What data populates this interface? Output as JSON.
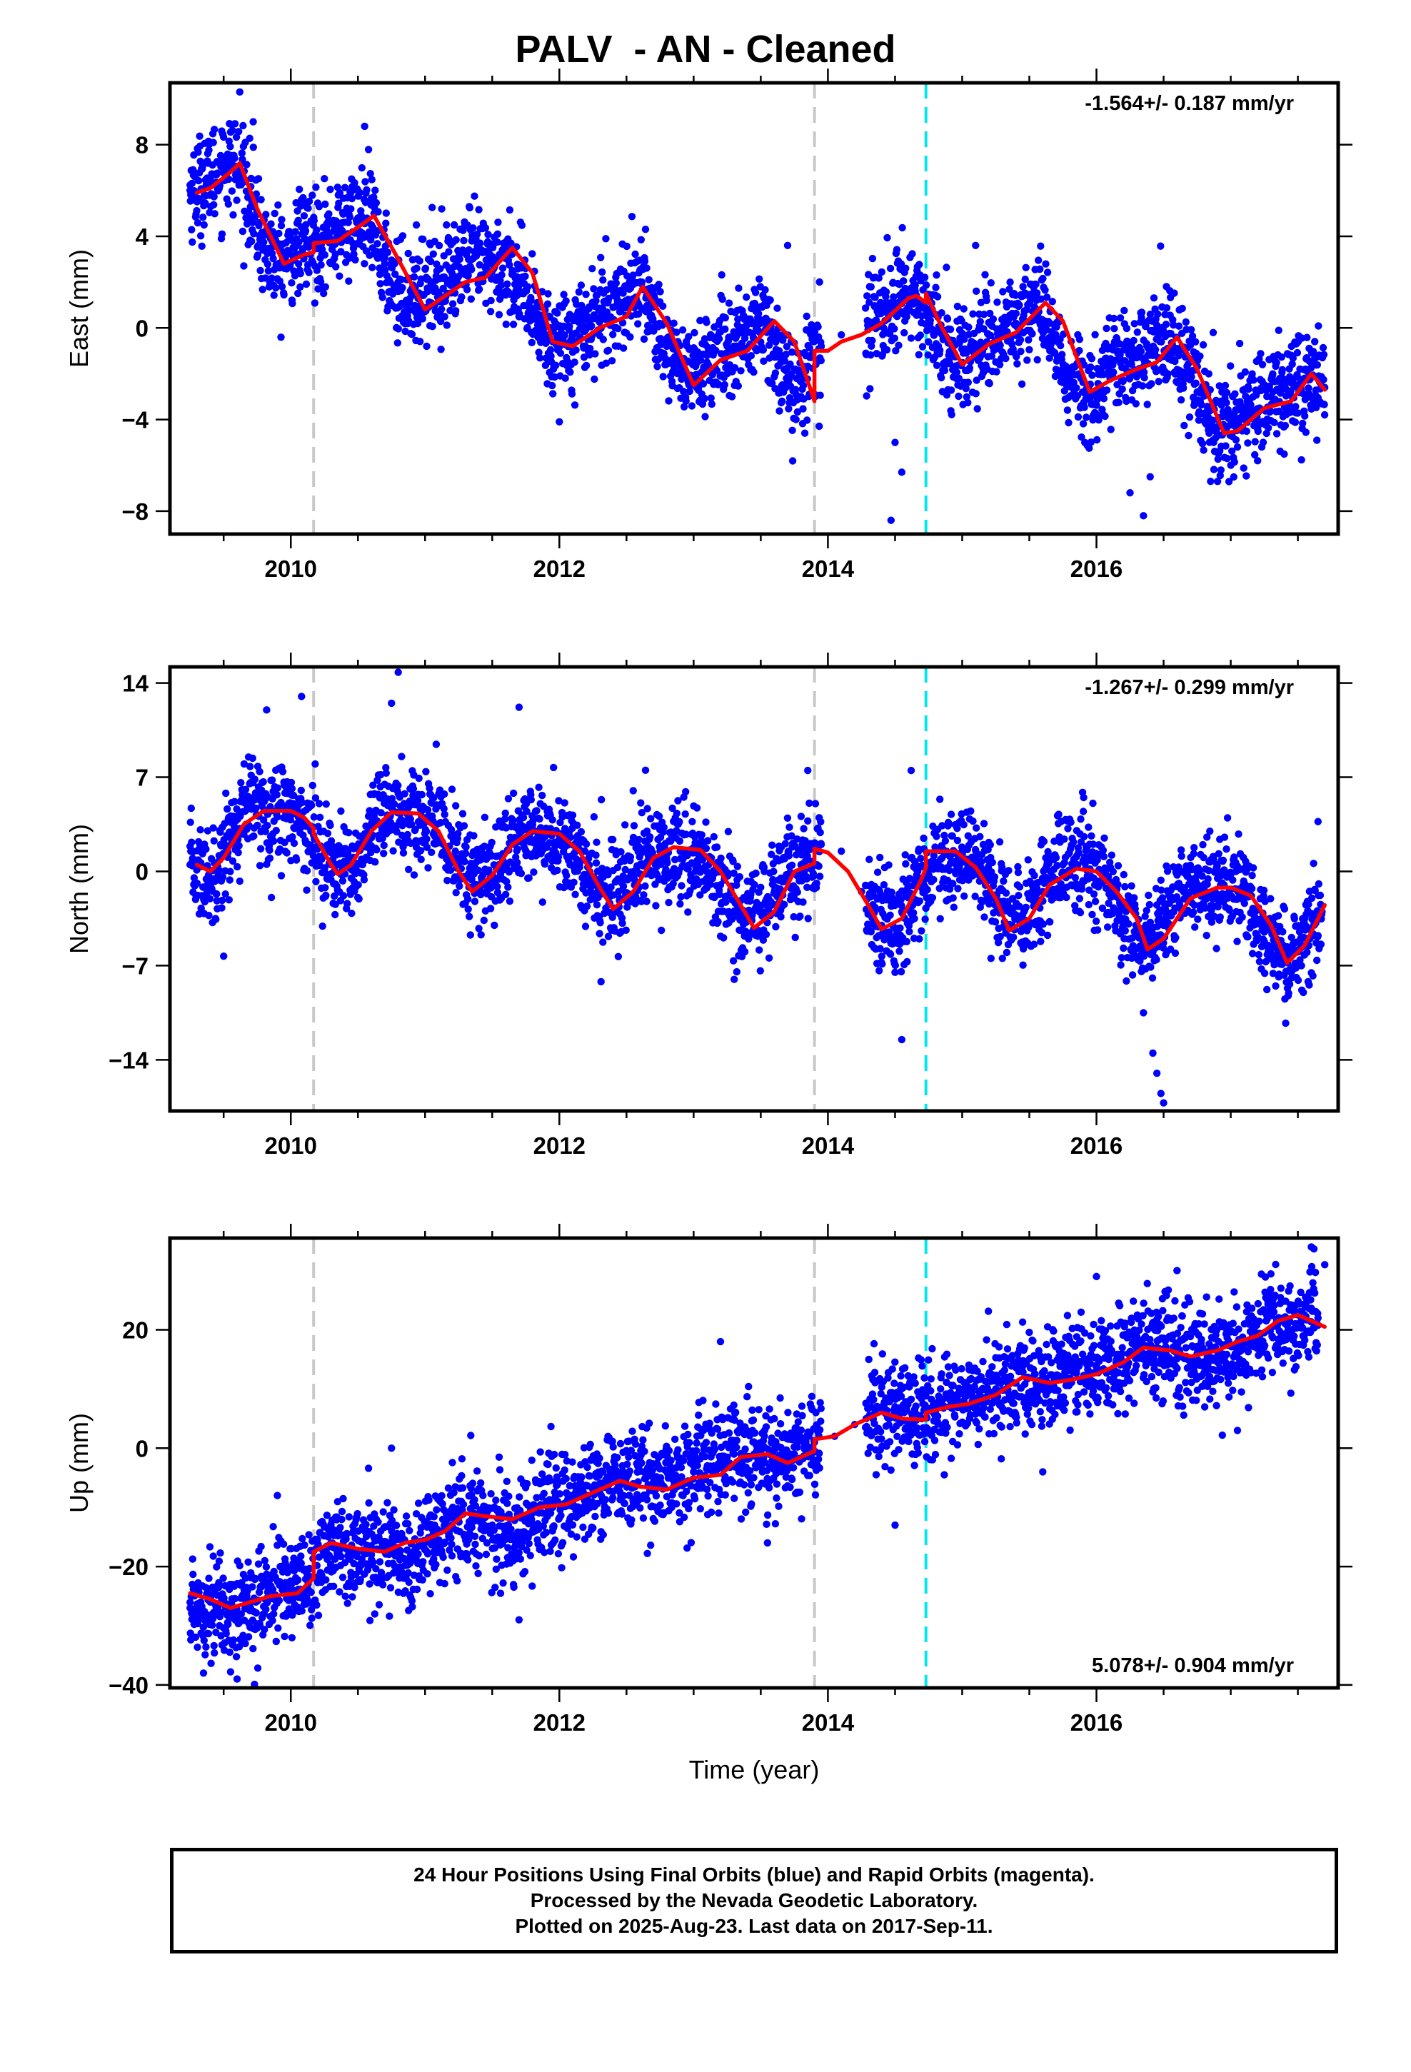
{
  "title": "PALV  - AN - Cleaned",
  "colors": {
    "points": "#0000ff",
    "model": "#ff0000",
    "gray_marker": "#c8c8c8",
    "cyan_marker": "#00e5ee",
    "frame": "#000000"
  },
  "chart_data": [
    {
      "type": "scatter",
      "title": "",
      "xlabel": "",
      "ylabel": "East (mm)",
      "xlim": [
        2009.1,
        2017.8
      ],
      "ylim": [
        -9.0,
        10.7
      ],
      "xticks": [
        "2010",
        "2012",
        "2014",
        "2016"
      ],
      "yticks": [
        "8",
        "4",
        "0",
        "−4",
        "−8"
      ],
      "ytick_values": [
        8,
        4,
        0,
        -4,
        -8
      ],
      "rate_text": "-1.564+/- 0.187 mm/yr",
      "rate_position": "top-right",
      "markers": {
        "gray_dashed": [
          2010.17,
          2013.9
        ],
        "cyan_dashed": [
          2014.73
        ]
      },
      "series": [
        {
          "kind": "daily positions",
          "x": [
            2009.25,
            2009.4,
            2009.55,
            2009.65,
            2009.8,
            2009.95,
            2010.05,
            2010.2,
            2010.35,
            2010.5,
            2010.6,
            2010.7,
            2010.8,
            2010.9,
            2011.05,
            2011.2,
            2011.35,
            2011.5,
            2011.65,
            2011.8,
            2011.95,
            2012.1,
            2012.25,
            2012.4,
            2012.55,
            2012.65,
            2012.8,
            2012.95,
            2013.1,
            2013.3,
            2013.5,
            2013.65,
            2013.8,
            2013.87,
            2013.95,
            2014.1,
            2014.3,
            2014.45,
            2014.55,
            2014.65,
            2014.75,
            2014.9,
            2015.05,
            2015.2,
            2015.4,
            2015.55,
            2015.65,
            2015.8,
            2015.95,
            2016.1,
            2016.3,
            2016.45,
            2016.6,
            2016.75,
            2016.9,
            2017.0,
            2017.15,
            2017.3,
            2017.45,
            2017.55,
            2017.7
          ],
          "y": [
            6.0,
            6.5,
            7.4,
            6.5,
            3.5,
            2.8,
            3.6,
            3.9,
            4.2,
            4.8,
            4.5,
            2.8,
            1.6,
            1.4,
            2.0,
            2.4,
            3.0,
            2.8,
            2.5,
            0.5,
            -0.6,
            -0.3,
            0.4,
            0.9,
            1.9,
            1.4,
            -0.8,
            -2.1,
            -1.5,
            -0.8,
            0.2,
            -1.5,
            -3.0,
            -1.2,
            -0.8,
            -0.3,
            0.3,
            0.8,
            1.5,
            1.6,
            0.3,
            -1.2,
            -1.4,
            -0.3,
            0.2,
            1.3,
            0.2,
            -2.2,
            -2.8,
            -2.0,
            -1.3,
            -0.2,
            -0.9,
            -2.8,
            -4.0,
            -4.2,
            -3.6,
            -3.0,
            -2.4,
            -2.2,
            -2.6
          ]
        },
        {
          "kind": "outliers",
          "x": [
            2009.62,
            2009.72,
            2010.1,
            2010.55,
            2012.0,
            2013.7,
            2014.47,
            2014.5,
            2014.55,
            2015.1,
            2016.25,
            2016.35,
            2016.4,
            2016.85,
            2017.2
          ],
          "y": [
            10.3,
            9.0,
            5.5,
            8.8,
            -4.1,
            3.6,
            -8.4,
            -5.0,
            -6.3,
            3.6,
            -7.2,
            -8.2,
            -6.5,
            -6.7,
            -5.8
          ]
        },
        {
          "kind": "model fit",
          "x": [
            2009.3,
            2009.4,
            2009.55,
            2009.62,
            2009.75,
            2009.95,
            2010.1,
            2010.17,
            2010.17,
            2010.35,
            2010.55,
            2010.62,
            2010.8,
            2011.0,
            2011.15,
            2011.3,
            2011.45,
            2011.65,
            2011.8,
            2011.95,
            2012.1,
            2012.3,
            2012.5,
            2012.62,
            2012.8,
            2013.0,
            2013.2,
            2013.4,
            2013.6,
            2013.75,
            2013.9,
            2013.9,
            2014.0,
            2014.1,
            2014.25,
            2014.4,
            2014.6,
            2014.66,
            2014.73,
            2014.73,
            2014.85,
            2015.0,
            2015.2,
            2015.4,
            2015.62,
            2015.75,
            2015.95,
            2016.1,
            2016.3,
            2016.45,
            2016.6,
            2016.75,
            2016.95,
            2017.05,
            2017.25,
            2017.45,
            2017.6,
            2017.7
          ],
          "y": [
            5.9,
            6.1,
            6.8,
            7.2,
            5.2,
            2.8,
            3.2,
            3.3,
            3.7,
            3.8,
            4.6,
            4.9,
            3.0,
            0.8,
            1.4,
            2.0,
            2.2,
            3.5,
            2.4,
            -0.6,
            -0.8,
            0.0,
            0.5,
            1.8,
            0.2,
            -2.5,
            -1.4,
            -1.0,
            0.3,
            -0.6,
            -3.2,
            -1.0,
            -1.0,
            -0.6,
            -0.3,
            0.2,
            1.3,
            1.4,
            1.1,
            1.5,
            0.0,
            -1.6,
            -0.7,
            -0.2,
            1.1,
            0.3,
            -2.8,
            -2.3,
            -1.8,
            -1.5,
            -0.4,
            -1.8,
            -4.6,
            -4.5,
            -3.5,
            -3.2,
            -2.0,
            -2.7
          ]
        }
      ]
    },
    {
      "type": "scatter",
      "title": "",
      "xlabel": "",
      "ylabel": "North (mm)",
      "xlim": [
        2009.1,
        2017.8
      ],
      "ylim": [
        -17.8,
        15.2
      ],
      "xticks": [
        "2010",
        "2012",
        "2014",
        "2016"
      ],
      "yticks": [
        "14",
        "7",
        "0",
        "−7",
        "−14"
      ],
      "ytick_values": [
        14,
        7,
        0,
        -7,
        -14
      ],
      "rate_text": "-1.267+/- 0.299 mm/yr",
      "rate_position": "top-right",
      "markers": {
        "gray_dashed": [
          2010.17,
          2013.9
        ],
        "cyan_dashed": [
          2014.73
        ]
      },
      "series": [
        {
          "kind": "daily positions",
          "x": [
            2009.25,
            2009.4,
            2009.55,
            2009.7,
            2009.85,
            2010.0,
            2010.15,
            2010.3,
            2010.45,
            2010.6,
            2010.75,
            2010.9,
            2011.05,
            2011.25,
            2011.4,
            2011.55,
            2011.7,
            2011.85,
            2012.0,
            2012.15,
            2012.3,
            2012.45,
            2012.6,
            2012.75,
            2012.9,
            2013.05,
            2013.2,
            2013.35,
            2013.5,
            2013.65,
            2013.8,
            2013.95,
            2014.1,
            2014.25,
            2014.4,
            2014.55,
            2014.7,
            2014.85,
            2015.0,
            2015.15,
            2015.3,
            2015.45,
            2015.6,
            2015.75,
            2015.9,
            2016.05,
            2016.2,
            2016.35,
            2016.5,
            2016.65,
            2016.8,
            2016.95,
            2017.1,
            2017.25,
            2017.4,
            2017.55,
            2017.68
          ],
          "y": [
            0.5,
            -0.5,
            2.5,
            5.0,
            4.5,
            4.5,
            3.0,
            0.5,
            -0.5,
            2.5,
            5.0,
            3.5,
            4.0,
            1.0,
            -1.0,
            0.5,
            2.5,
            3.0,
            2.0,
            0.5,
            -1.5,
            -2.0,
            0.5,
            1.5,
            1.5,
            1.0,
            -1.0,
            -3.5,
            -3.0,
            -0.5,
            0.5,
            2.0,
            1.5,
            -1.5,
            -4.0,
            -3.0,
            -0.5,
            1.0,
            1.5,
            0.0,
            -2.5,
            -4.0,
            -1.5,
            0.5,
            0.8,
            -0.5,
            -3.5,
            -5.5,
            -4.0,
            -1.5,
            -1.0,
            -1.0,
            -1.5,
            -4.5,
            -6.5,
            -5.5,
            -3.0
          ]
        },
        {
          "kind": "outliers",
          "x": [
            2009.5,
            2009.82,
            2010.08,
            2010.75,
            2010.8,
            2011.7,
            2012.55,
            2013.85,
            2014.5,
            2014.55,
            2014.62,
            2016.35,
            2016.42,
            2016.45,
            2016.48,
            2016.5,
            2017.65
          ],
          "y": [
            -6.3,
            12.0,
            13.0,
            12.5,
            14.8,
            12.2,
            6.0,
            7.5,
            -7.5,
            -12.5,
            7.5,
            -10.5,
            -13.5,
            -15.0,
            -16.5,
            -17.2,
            3.7
          ]
        },
        {
          "kind": "model fit",
          "x": [
            2009.3,
            2009.4,
            2009.5,
            2009.65,
            2009.8,
            2010.0,
            2010.1,
            2010.17,
            2010.17,
            2010.3,
            2010.35,
            2010.45,
            2010.6,
            2010.75,
            2010.95,
            2011.1,
            2011.25,
            2011.35,
            2011.5,
            2011.65,
            2011.8,
            2012.0,
            2012.15,
            2012.3,
            2012.4,
            2012.55,
            2012.7,
            2012.85,
            2013.05,
            2013.2,
            2013.35,
            2013.45,
            2013.6,
            2013.75,
            2013.9,
            2013.9,
            2014.0,
            2014.15,
            2014.3,
            2014.4,
            2014.55,
            2014.7,
            2014.73,
            2014.73,
            2014.95,
            2015.1,
            2015.25,
            2015.35,
            2015.5,
            2015.65,
            2015.85,
            2016.0,
            2016.15,
            2016.3,
            2016.38,
            2016.5,
            2016.7,
            2016.9,
            2017.0,
            2017.15,
            2017.3,
            2017.42,
            2017.55,
            2017.7
          ],
          "y": [
            0.5,
            0.0,
            1.0,
            3.5,
            4.5,
            4.5,
            4.0,
            3.2,
            2.8,
            0.5,
            -0.2,
            0.5,
            3.0,
            4.4,
            4.3,
            3.0,
            0.0,
            -1.5,
            -0.3,
            2.0,
            3.0,
            2.8,
            1.5,
            -1.2,
            -2.8,
            -1.5,
            1.0,
            1.8,
            1.6,
            0.0,
            -2.5,
            -4.2,
            -3.0,
            0.0,
            0.6,
            1.7,
            1.4,
            0.0,
            -2.5,
            -4.3,
            -3.5,
            -0.5,
            0.3,
            1.5,
            1.5,
            0.3,
            -2.0,
            -4.4,
            -3.5,
            -1.0,
            0.2,
            0.0,
            -1.5,
            -3.5,
            -5.8,
            -5.0,
            -2.0,
            -1.2,
            -1.2,
            -1.8,
            -4.0,
            -6.8,
            -5.5,
            -2.5
          ]
        }
      ]
    },
    {
      "type": "scatter",
      "title": "",
      "xlabel": "Time (year)",
      "ylabel": "Up (mm)",
      "xlim": [
        2009.1,
        2017.8
      ],
      "ylim": [
        -40.5,
        35.5
      ],
      "xticks": [
        "2010",
        "2012",
        "2014",
        "2016"
      ],
      "yticks": [
        "20",
        "0",
        "−20",
        "−40"
      ],
      "ytick_values": [
        20,
        0,
        -20,
        -40
      ],
      "rate_text": "5.078+/- 0.904 mm/yr",
      "rate_position": "bottom-right",
      "markers": {
        "gray_dashed": [
          2010.17,
          2013.9
        ],
        "cyan_dashed": [
          2014.73
        ]
      },
      "series": [
        {
          "kind": "daily positions",
          "x": [
            2009.25,
            2009.4,
            2009.55,
            2009.7,
            2009.85,
            2010.0,
            2010.15,
            2010.3,
            2010.45,
            2010.6,
            2010.75,
            2010.9,
            2011.05,
            2011.2,
            2011.35,
            2011.5,
            2011.65,
            2011.8,
            2011.95,
            2012.1,
            2012.25,
            2012.4,
            2012.55,
            2012.7,
            2012.85,
            2013.0,
            2013.15,
            2013.3,
            2013.45,
            2013.6,
            2013.75,
            2013.9,
            2014.05,
            2014.2,
            2014.35,
            2014.5,
            2014.65,
            2014.8,
            2014.95,
            2015.1,
            2015.25,
            2015.4,
            2015.55,
            2015.7,
            2015.85,
            2016.0,
            2016.15,
            2016.3,
            2016.45,
            2016.6,
            2016.75,
            2016.9,
            2017.05,
            2017.2,
            2017.35,
            2017.5,
            2017.65
          ],
          "y": [
            -27,
            -26,
            -28,
            -27,
            -24,
            -23,
            -22,
            -16,
            -17,
            -18,
            -17,
            -19,
            -15,
            -13,
            -11,
            -13,
            -15,
            -11,
            -10,
            -9,
            -7,
            -5,
            -6,
            -6,
            -5,
            -4,
            -3,
            -1,
            -1,
            -2,
            -1,
            1,
            2,
            4,
            6,
            7,
            6,
            6,
            7,
            8,
            10,
            11,
            11,
            12,
            13,
            14,
            15,
            17,
            17,
            16,
            16,
            15,
            16,
            19,
            21,
            21,
            22
          ]
        },
        {
          "kind": "outliers",
          "x": [
            2009.35,
            2009.6,
            2009.9,
            2010.75,
            2011.7,
            2013.2,
            2013.55,
            2014.5,
            2015.6,
            2016.0,
            2016.6,
            2017.05,
            2017.6,
            2017.7
          ],
          "y": [
            -38,
            -39,
            -8,
            0,
            -29,
            18,
            -16,
            -13,
            -4,
            29,
            30,
            3,
            34,
            31
          ]
        },
        {
          "kind": "model fit",
          "x": [
            2009.25,
            2009.4,
            2009.55,
            2009.7,
            2009.85,
            2010.05,
            2010.17,
            2010.17,
            2010.3,
            2010.5,
            2010.7,
            2010.85,
            2011.0,
            2011.15,
            2011.3,
            2011.45,
            2011.65,
            2011.85,
            2012.05,
            2012.25,
            2012.45,
            2012.6,
            2012.8,
            2013.0,
            2013.2,
            2013.35,
            2013.55,
            2013.7,
            2013.9,
            2013.9,
            2014.05,
            2014.2,
            2014.4,
            2014.55,
            2014.73,
            2014.73,
            2014.9,
            2015.05,
            2015.25,
            2015.45,
            2015.65,
            2015.8,
            2016.0,
            2016.2,
            2016.35,
            2016.55,
            2016.7,
            2016.9,
            2017.05,
            2017.2,
            2017.35,
            2017.5,
            2017.7
          ],
          "y": [
            -24.5,
            -25.5,
            -27.0,
            -26.0,
            -25.0,
            -24.5,
            -22.0,
            -17.5,
            -16.0,
            -17.0,
            -17.5,
            -16.0,
            -15.5,
            -14.0,
            -11.0,
            -11.5,
            -12.0,
            -10.0,
            -9.5,
            -7.5,
            -5.5,
            -6.5,
            -7.0,
            -5.0,
            -4.5,
            -1.5,
            -1.0,
            -2.5,
            -0.5,
            1.5,
            2.0,
            4.0,
            6.0,
            5.0,
            4.8,
            6.0,
            7.0,
            7.5,
            9.0,
            12.0,
            11.0,
            11.5,
            12.5,
            14.5,
            17.0,
            16.5,
            15.5,
            16.5,
            18.0,
            19.0,
            21.5,
            22.5,
            20.5
          ]
        }
      ]
    }
  ],
  "footer": {
    "line1": "24 Hour Positions Using Final Orbits (blue) and Rapid Orbits (magenta).",
    "line2": "Processed by the Nevada Geodetic Laboratory.",
    "line3": "Plotted on 2025-Aug-23. Last data on 2017-Sep-11."
  }
}
